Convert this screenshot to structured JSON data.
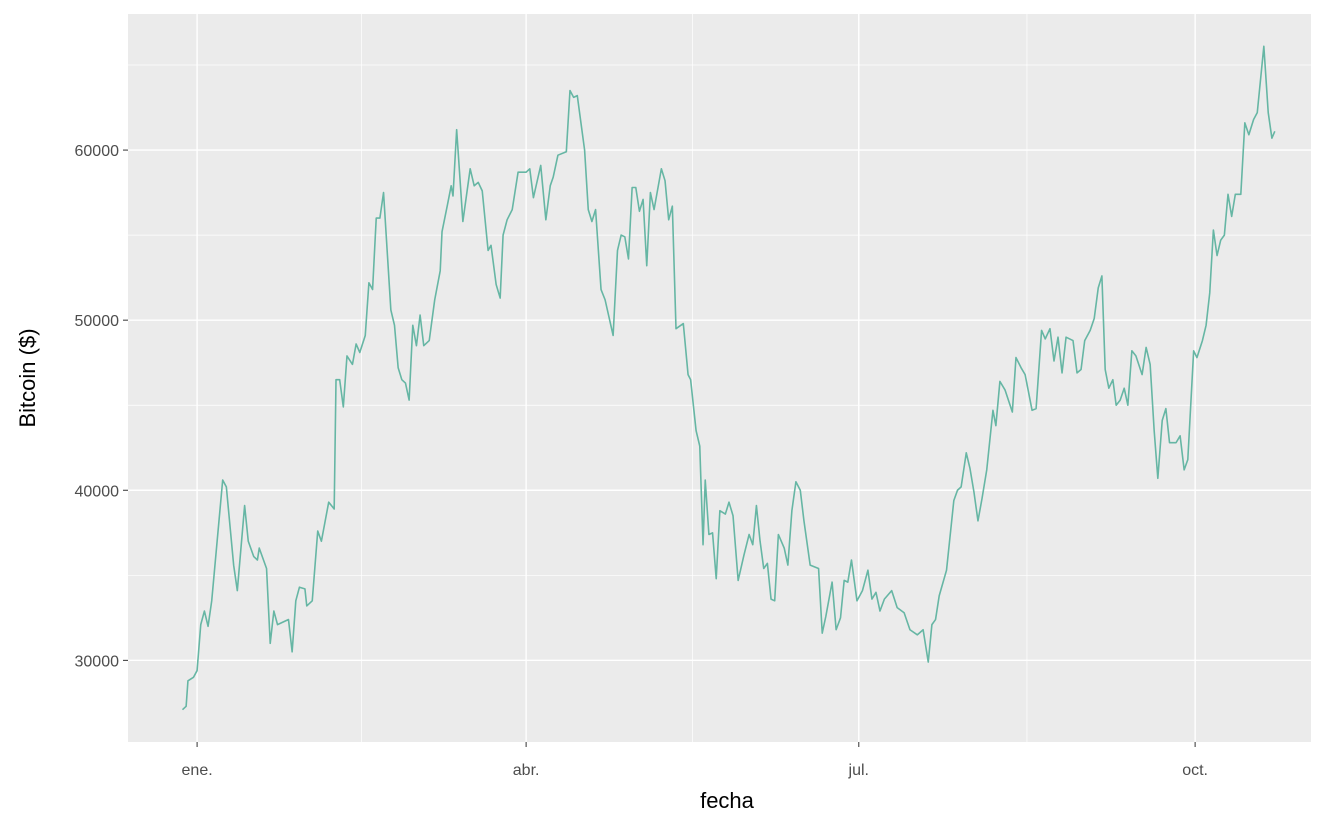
{
  "chart_data": {
    "type": "line",
    "x_label": "fecha",
    "y_label": "Bitcoin ($)",
    "xlim": [
      -18.9,
      304.7
    ],
    "ylim": [
      25200,
      68000
    ],
    "xticks": [
      {
        "value": 0,
        "label": "ene."
      },
      {
        "value": 90,
        "label": "abr."
      },
      {
        "value": 181,
        "label": "jul."
      },
      {
        "value": 273,
        "label": "oct."
      }
    ],
    "xminor": [
      45,
      135.5,
      227
    ],
    "yticks": [
      30000,
      40000,
      50000,
      60000
    ],
    "yminor": [
      35000,
      45000,
      55000,
      65000
    ],
    "grid": true,
    "series": [
      {
        "color": "#66b6a4",
        "x": [
          -4,
          -3,
          -2.5,
          -1,
          0,
          1,
          2,
          3,
          4,
          7,
          8,
          10,
          11,
          13,
          14,
          15.5,
          16.5,
          17,
          19,
          20,
          21,
          22,
          25,
          26,
          27,
          28,
          29.5,
          30,
          31.5,
          33,
          34,
          36,
          37.5,
          38,
          39,
          40,
          41,
          42.5,
          43.5,
          44.5,
          46,
          47,
          48,
          49,
          50,
          51,
          53,
          54,
          55,
          56,
          57,
          58,
          59,
          60,
          61,
          62,
          63.5,
          65,
          66.5,
          67,
          68.5,
          69.5,
          70,
          71,
          72.7,
          74.7,
          75.8,
          76.9,
          78,
          79.6,
          80.4,
          81.8,
          82.9,
          83.7,
          84.8,
          86.2,
          87.8,
          90,
          91,
          92,
          94,
          95.4,
          96.6,
          97.4,
          98.7,
          101,
          102,
          103,
          104,
          106,
          107,
          108,
          109,
          110.5,
          111.6,
          113.8,
          115,
          116,
          117,
          118,
          119,
          120,
          121,
          122,
          123,
          124,
          125,
          127,
          128,
          129,
          130,
          131,
          133,
          134.3,
          135,
          136.5,
          137.5,
          138.4,
          139,
          140,
          141,
          142,
          143,
          144.5,
          145.5,
          146.6,
          148,
          149.6,
          151,
          152,
          153,
          154,
          155,
          156,
          157,
          158,
          159,
          160.6,
          161.6,
          162.7,
          163.8,
          165,
          166,
          167.7,
          170,
          171,
          172,
          173.7,
          174.8,
          176,
          177,
          178,
          179,
          180.5,
          182,
          183.5,
          184.6,
          185.7,
          186.8,
          188,
          190,
          191.5,
          193.4,
          195,
          197,
          198.6,
          200,
          201,
          202,
          203,
          205,
          207,
          208,
          209,
          210.4,
          211.4,
          212.5,
          213.6,
          214.7,
          216,
          217.7,
          218.5,
          219.6,
          221,
          223,
          224,
          225.4,
          226.5,
          228.4,
          229.5,
          231,
          232,
          233.3,
          234.4,
          235.5,
          236.6,
          237.7,
          239.6,
          240.7,
          241.8,
          242.8,
          244.3,
          245.4,
          246.5,
          247.5,
          248.4,
          249.4,
          250.5,
          251.4,
          252.5,
          253.6,
          254.6,
          255.7,
          256.8,
          258.5,
          259.6,
          260.7,
          261.8,
          262.8,
          264,
          265,
          266,
          267.8,
          268.9,
          270,
          271,
          272.6,
          273.5,
          275,
          276,
          277,
          278,
          279,
          280,
          281,
          282,
          283,
          284,
          285.5,
          286.6,
          287.7,
          289,
          290,
          291.8,
          293,
          294,
          294.8
        ],
        "values": [
          27100,
          27300,
          28800,
          29000,
          29400,
          32100,
          32900,
          32000,
          33500,
          40600,
          40200,
          35600,
          34100,
          39100,
          37000,
          36100,
          35900,
          36600,
          35400,
          31000,
          32900,
          32100,
          32400,
          30500,
          33500,
          34300,
          34200,
          33200,
          33500,
          37600,
          37000,
          39300,
          38900,
          46500,
          46500,
          44900,
          47900,
          47400,
          48600,
          48100,
          49100,
          52200,
          51800,
          56000,
          56000,
          57500,
          50600,
          49700,
          47200,
          46500,
          46300,
          45300,
          49700,
          48500,
          50300,
          48500,
          48800,
          51200,
          52900,
          55200,
          56800,
          57900,
          57300,
          61200,
          55800,
          58900,
          57900,
          58100,
          57600,
          54100,
          54400,
          52100,
          51300,
          55000,
          55900,
          56500,
          58700,
          58700,
          58900,
          57200,
          59100,
          55900,
          57900,
          58400,
          59700,
          59900,
          63500,
          63100,
          63200,
          60000,
          56500,
          55800,
          56500,
          51800,
          51200,
          49100,
          54100,
          55000,
          54900,
          53600,
          57800,
          57800,
          56400,
          57100,
          53200,
          57500,
          56500,
          58900,
          58200,
          55900,
          56700,
          49500,
          49800,
          46800,
          46500,
          43500,
          42600,
          36800,
          40600,
          37400,
          37500,
          34800,
          38800,
          38600,
          39300,
          38500,
          34700,
          36200,
          37400,
          36800,
          39100,
          37000,
          35400,
          35700,
          33600,
          33500,
          37400,
          36600,
          35600,
          38800,
          40500,
          40000,
          38200,
          35600,
          35400,
          31600,
          32600,
          34600,
          31800,
          32500,
          34700,
          34600,
          35900,
          33500,
          34100,
          35300,
          33600,
          34000,
          32900,
          33600,
          34100,
          33100,
          32800,
          31800,
          31500,
          31800,
          29900,
          32100,
          32400,
          33800,
          35300,
          39400,
          40000,
          40200,
          42200,
          41300,
          39900,
          38200,
          39500,
          41200,
          44700,
          43800,
          46400,
          45900,
          44600,
          47800,
          47200,
          46800,
          44700,
          44800,
          49400,
          48900,
          49500,
          47600,
          49000,
          46900,
          49000,
          48800,
          46900,
          47100,
          48800,
          49400,
          50100,
          51900,
          52600,
          47100,
          46000,
          46500,
          45000,
          45300,
          46000,
          45000,
          48200,
          47900,
          46800,
          48400,
          47400,
          43500,
          40700,
          44100,
          44800,
          42800,
          42800,
          43200,
          41200,
          41800,
          48200,
          47800,
          48800,
          49700,
          51600,
          55300,
          53800,
          54700,
          55000,
          57400,
          56100,
          57400,
          57400,
          61600,
          60900,
          61800,
          62200,
          66100,
          62200,
          60700,
          61100
        ]
      }
    ]
  }
}
